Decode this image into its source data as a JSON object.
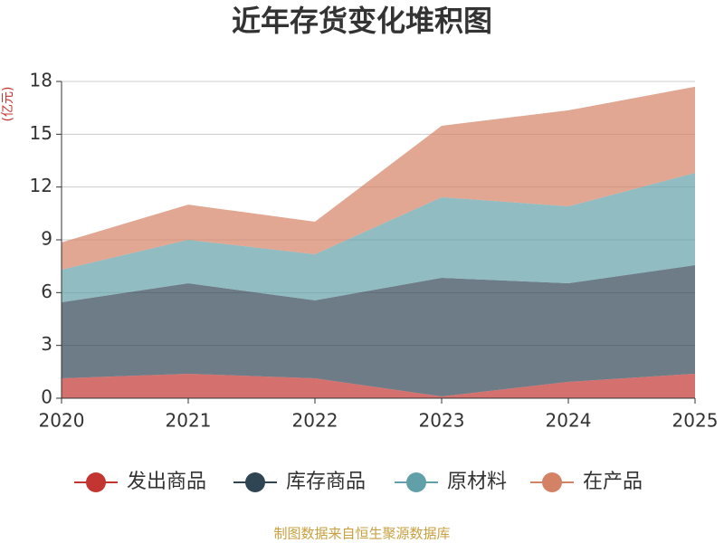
{
  "chart_data": {
    "type": "stacked-area",
    "title": "近年存货变化堆积图",
    "y_label": "(亿元)",
    "categories": [
      "2020",
      "2021",
      "2022",
      "2023",
      "2024",
      "2025"
    ],
    "series": [
      {
        "name": "发出商品",
        "color": "#c23531",
        "values": [
          1.13,
          1.39,
          1.13,
          0.1,
          0.93,
          1.39
        ]
      },
      {
        "name": "库存商品",
        "color": "#2f4554",
        "values": [
          4.32,
          5.14,
          4.43,
          6.74,
          5.6,
          6.17
        ]
      },
      {
        "name": "原材料",
        "color": "#61a0a8",
        "values": [
          1.85,
          2.47,
          2.62,
          4.58,
          4.37,
          5.24
        ]
      },
      {
        "name": "在产品",
        "color": "#d48265",
        "values": [
          1.55,
          2.0,
          1.85,
          4.06,
          5.46,
          4.9
        ]
      }
    ],
    "ylim": [
      0,
      18
    ],
    "yticks": [
      0,
      3,
      6,
      9,
      12,
      15,
      18
    ],
    "grid": true,
    "source": "制图数据来自恒生聚源数据库"
  }
}
